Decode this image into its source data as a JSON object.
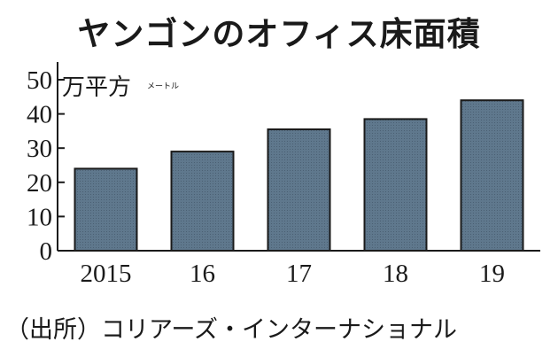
{
  "chart_data": {
    "type": "bar",
    "title": "ヤンゴンのオフィス床面積",
    "unit_label": "万平方",
    "unit_suffix": "メートル",
    "categories": [
      "2015",
      "16",
      "17",
      "18",
      "19"
    ],
    "values": [
      24,
      29,
      35.5,
      38.5,
      44
    ],
    "y_ticks": [
      "0",
      "10",
      "20",
      "30",
      "40",
      "50"
    ],
    "ylim": [
      0,
      50
    ],
    "bar_color": "#5f788d",
    "grid": false
  },
  "source": "（出所）コリアーズ・インターナショナル"
}
